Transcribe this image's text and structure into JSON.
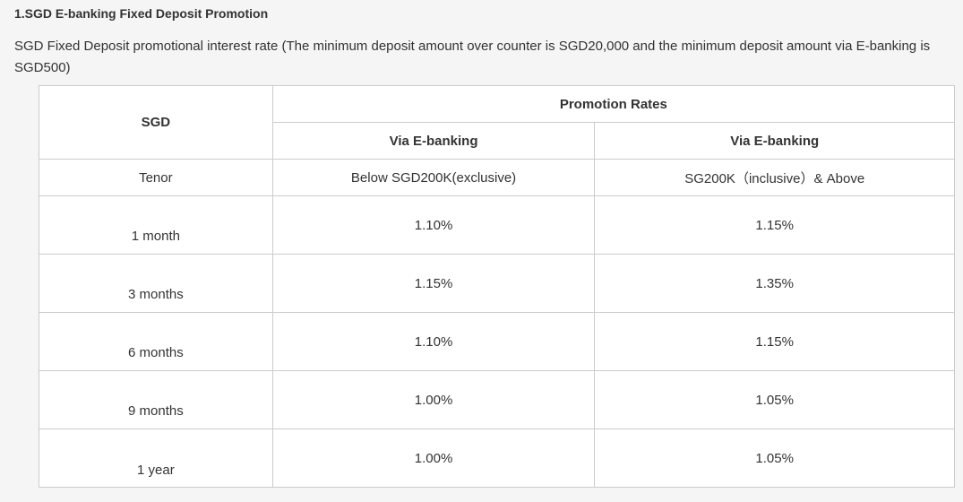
{
  "heading": "1.SGD E-banking Fixed Deposit Promotion",
  "intro": "SGD Fixed Deposit promotional interest rate (The minimum deposit amount over counter is SGD20,000 and the minimum deposit amount via E-banking is SGD500)",
  "table": {
    "corner": "SGD",
    "group_header": "Promotion Rates",
    "column_headers": [
      "Via E-banking",
      "Via E-banking"
    ],
    "subheader_label": "Tenor",
    "subheaders": [
      "Below SGD200K(exclusive)",
      "SG200K（inclusive）& Above"
    ],
    "rows": [
      [
        "1 month",
        "1.10%",
        "1.15%"
      ],
      [
        "3 months",
        "1.15%",
        "1.35%"
      ],
      [
        "6 months",
        "1.10%",
        "1.15%"
      ],
      [
        "9 months",
        "1.00%",
        "1.05%"
      ],
      [
        "1 year",
        "1.00%",
        "1.05%"
      ]
    ]
  }
}
